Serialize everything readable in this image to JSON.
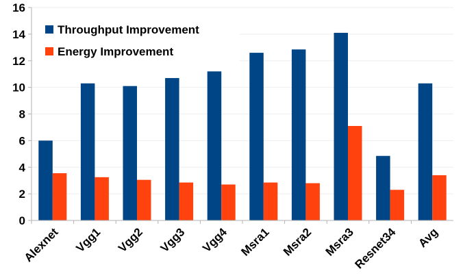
{
  "chart_data": {
    "type": "bar",
    "categories": [
      "Alexnet",
      "Vgg1",
      "Vgg2",
      "Vgg3",
      "Vgg4",
      "Msra1",
      "Msra2",
      "Msra3",
      "Resnet34",
      "Avg"
    ],
    "series": [
      {
        "name": "Throughput Improvement",
        "color": "#004586",
        "values": [
          6.0,
          10.3,
          10.1,
          10.7,
          11.2,
          12.6,
          12.85,
          14.1,
          4.85,
          10.3
        ]
      },
      {
        "name": "Energy Improvement",
        "color": "#ff420e",
        "values": [
          3.55,
          3.25,
          3.05,
          2.85,
          2.7,
          2.85,
          2.8,
          7.1,
          2.3,
          3.4
        ]
      }
    ],
    "ylim": [
      0,
      16
    ],
    "yticks": [
      0,
      2,
      4,
      6,
      8,
      10,
      12,
      14,
      16
    ],
    "grid": true,
    "legend_position": "top-left",
    "xlabel": "",
    "ylabel": "",
    "title": ""
  }
}
